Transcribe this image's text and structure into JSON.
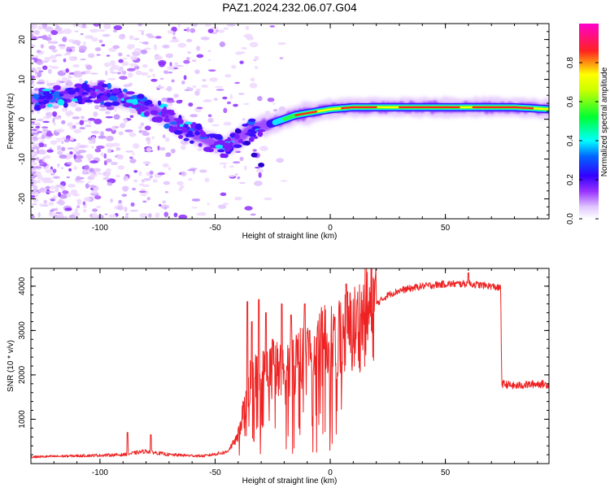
{
  "figure": {
    "title": "PAZ1.2024.232.06.07.G04"
  },
  "chart_data": [
    {
      "type": "heatmap",
      "xlabel": "Height of straight line (km)",
      "ylabel": "Frequency (Hz)",
      "xlim": [
        -130,
        95
      ],
      "ylim": [
        -25,
        24
      ],
      "x_ticks": [
        -100,
        -50,
        0,
        50
      ],
      "y_ticks": [
        -20,
        -10,
        0,
        10,
        20
      ],
      "grid": false,
      "colorbar": {
        "label": "Normalized spectral amplitude",
        "ticks": [
          0.0,
          0.2,
          0.4,
          0.6,
          0.8
        ],
        "range": [
          0,
          1
        ],
        "colormap": [
          "#ffffff",
          "#e6ccff",
          "#9933ff",
          "#3300ff",
          "#00ffff",
          "#00ff00",
          "#ffff00",
          "#ff0000",
          "#ff00cc"
        ]
      },
      "ridge": {
        "x": [
          -125,
          -115,
          -105,
          -95,
          -85,
          -75,
          -65,
          -55,
          -45,
          -38,
          -32,
          -25,
          -15,
          -5,
          0,
          10,
          20,
          30,
          40,
          50,
          60,
          70,
          80,
          95
        ],
        "y": [
          5,
          6,
          7,
          6,
          4,
          2,
          -2,
          -5,
          -7,
          -4,
          -2,
          -1,
          1,
          2,
          2.5,
          3,
          3,
          3,
          3,
          3,
          3,
          3,
          3,
          2.5
        ]
      }
    },
    {
      "type": "line",
      "xlabel": "Height of straight line (km)",
      "ylabel": "SNR (10 * v/v)",
      "xlim": [
        -130,
        95
      ],
      "ylim": [
        0,
        4400
      ],
      "x_ticks": [
        -100,
        -50,
        0,
        50
      ],
      "y_ticks": [
        1000,
        2000,
        3000,
        4000
      ],
      "grid": false,
      "series": [
        {
          "color": "#ee2222",
          "envelope": {
            "x": [
              -130,
              -90,
              -80,
              -70,
              -55,
              -45,
              -40,
              -35,
              -30,
              -25,
              -20,
              -15,
              -10,
              -5,
              0,
              5,
              10,
              15,
              20,
              25,
              30,
              40,
              50,
              60,
              70,
              74,
              74.5,
              80,
              90,
              95
            ],
            "y": [
              150,
              200,
              280,
              200,
              170,
              260,
              600,
              1800,
              1900,
              2100,
              2000,
              2300,
              2400,
              2600,
              2700,
              2900,
              3000,
              3300,
              3600,
              3800,
              3900,
              4000,
              4050,
              4050,
              4000,
              3950,
              1800,
              1750,
              1800,
              1780
            ]
          },
          "spikes": [
            {
              "x": -88,
              "y": 700
            },
            {
              "x": -78,
              "y": 650
            },
            {
              "x": -36,
              "y": 3650
            },
            {
              "x": -34,
              "y": 3200
            },
            {
              "x": -31,
              "y": 3700
            },
            {
              "x": -28,
              "y": 3400
            },
            {
              "x": -25,
              "y": 2800
            },
            {
              "x": -21,
              "y": 3600
            },
            {
              "x": -17,
              "y": 3350
            },
            {
              "x": -11,
              "y": 3600
            },
            {
              "x": -9,
              "y": 3000
            },
            {
              "x": 2,
              "y": 3300
            },
            {
              "x": 7,
              "y": 4050
            },
            {
              "x": 60,
              "y": 4300
            }
          ]
        }
      ]
    }
  ]
}
